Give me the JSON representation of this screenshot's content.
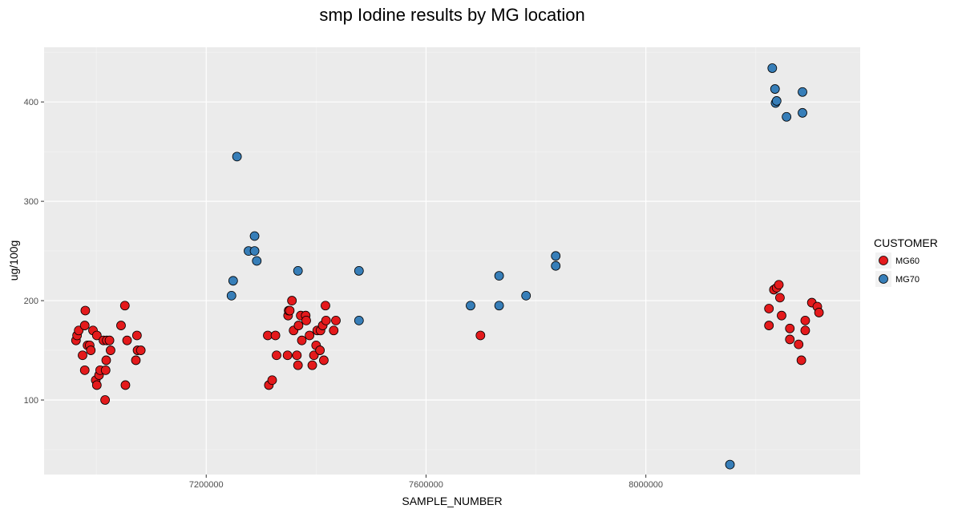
{
  "chart_data": {
    "type": "scatter",
    "title": "smp Iodine results by MG location",
    "xlabel": "SAMPLE_NUMBER",
    "ylabel": "ug/100g",
    "xlim": [
      6905000,
      8390000
    ],
    "ylim": [
      25,
      455
    ],
    "x_ticks": [
      7200000,
      7600000,
      8000000
    ],
    "x_tick_labels": [
      "7200000",
      "7600000",
      "8000000"
    ],
    "y_ticks": [
      100,
      200,
      300,
      400
    ],
    "y_tick_labels": [
      "100",
      "200",
      "300",
      "400"
    ],
    "grid": true,
    "legend": {
      "title": "CUSTOMER",
      "position": "right"
    },
    "series": [
      {
        "name": "MG60",
        "color": "#e41a1c",
        "points": [
          [
            6963,
            160
          ],
          [
            6965,
            165
          ],
          [
            6968,
            170
          ],
          [
            6975,
            145
          ],
          [
            6979,
            130
          ],
          [
            6979,
            175
          ],
          [
            6980,
            190
          ],
          [
            6984,
            155
          ],
          [
            6988,
            155
          ],
          [
            6990,
            150
          ],
          [
            6994,
            170
          ],
          [
            6999,
            120
          ],
          [
            7001,
            165
          ],
          [
            7001,
            115
          ],
          [
            7005,
            125
          ],
          [
            7007,
            130
          ],
          [
            7013,
            160
          ],
          [
            7016,
            100
          ],
          [
            7017,
            130
          ],
          [
            7018,
            140
          ],
          [
            7019,
            160
          ],
          [
            7024,
            160
          ],
          [
            7026,
            150
          ],
          [
            7045,
            175
          ],
          [
            7052,
            195
          ],
          [
            7053,
            115
          ],
          [
            7056,
            160
          ],
          [
            7072,
            140
          ],
          [
            7074,
            165
          ],
          [
            7075,
            150
          ],
          [
            7081,
            150
          ],
          [
            7312,
            165
          ],
          [
            7314,
            115
          ],
          [
            7320,
            120
          ],
          [
            7326,
            165
          ],
          [
            7328,
            145
          ],
          [
            7348,
            145
          ],
          [
            7349,
            185
          ],
          [
            7350,
            190
          ],
          [
            7352,
            190
          ],
          [
            7356,
            200
          ],
          [
            7359,
            170
          ],
          [
            7365,
            145
          ],
          [
            7367,
            135
          ],
          [
            7368,
            175
          ],
          [
            7372,
            185
          ],
          [
            7374,
            160
          ],
          [
            7381,
            185
          ],
          [
            7382,
            180
          ],
          [
            7388,
            165
          ],
          [
            7393,
            135
          ],
          [
            7396,
            145
          ],
          [
            7400,
            155
          ],
          [
            7402,
            170
          ],
          [
            7407,
            150
          ],
          [
            7408,
            170
          ],
          [
            7412,
            175
          ],
          [
            7414,
            140
          ],
          [
            7417,
            195
          ],
          [
            7418,
            180
          ],
          [
            7432,
            170
          ],
          [
            7436,
            180
          ],
          [
            7699,
            165
          ],
          [
            8224,
            192
          ],
          [
            8224,
            175
          ],
          [
            8233,
            211
          ],
          [
            8238,
            213
          ],
          [
            8242,
            216
          ],
          [
            8244,
            203
          ],
          [
            8247,
            185
          ],
          [
            8262,
            161
          ],
          [
            8262,
            172
          ],
          [
            8278,
            156
          ],
          [
            8283,
            140
          ],
          [
            8290,
            180
          ],
          [
            8290,
            170
          ],
          [
            8302,
            198
          ],
          [
            8312,
            194
          ],
          [
            8315,
            188
          ]
        ]
      },
      {
        "name": "MG70",
        "color": "#377eb8",
        "points": [
          [
            7246,
            205
          ],
          [
            7249,
            220
          ],
          [
            7256,
            345
          ],
          [
            7277,
            250
          ],
          [
            7288,
            265
          ],
          [
            7288,
            250
          ],
          [
            7292,
            240
          ],
          [
            7367,
            230
          ],
          [
            7478,
            230
          ],
          [
            7478,
            180
          ],
          [
            7681,
            195
          ],
          [
            7733,
            225
          ],
          [
            7733,
            195
          ],
          [
            7782,
            205
          ],
          [
            7836,
            245
          ],
          [
            7836,
            235
          ],
          [
            8153,
            35
          ],
          [
            8230,
            434
          ],
          [
            8235,
            413
          ],
          [
            8236,
            399
          ],
          [
            8238,
            401
          ],
          [
            8256,
            385
          ],
          [
            8285,
            410
          ],
          [
            8285,
            389
          ]
        ]
      }
    ]
  }
}
